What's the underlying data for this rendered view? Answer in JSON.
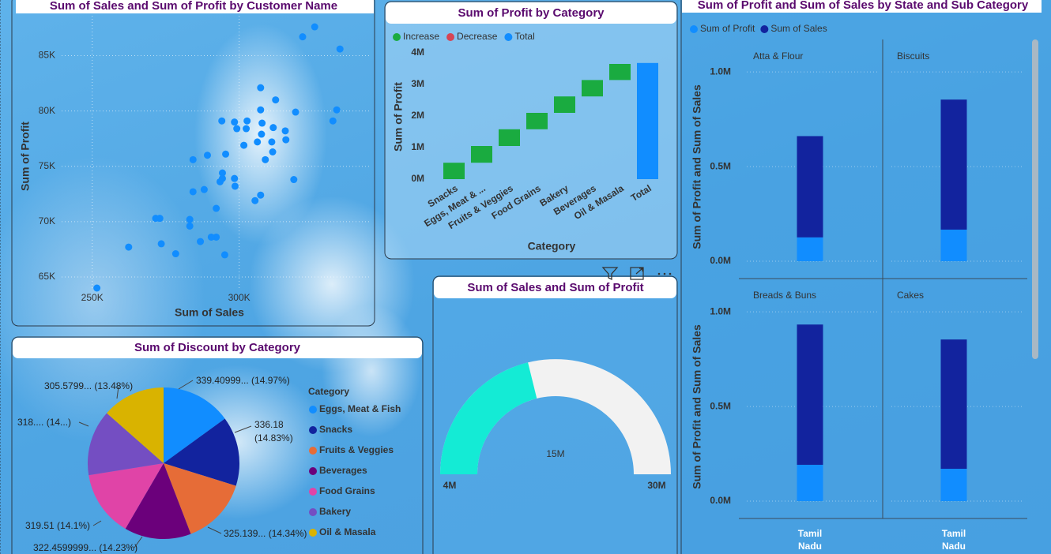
{
  "chart_data": [
    {
      "type": "scatter",
      "title": "Sum of Sales and Sum of Profit by Customer Name",
      "x_label": "Sum of Sales",
      "y_label": "Sum of Profit",
      "color": "#118DFF",
      "grid": true,
      "x": [
        325700,
        321600,
        334300,
        307300,
        312400,
        319200,
        333200,
        331900,
        307300,
        302700,
        294100,
        298400,
        299200,
        302400,
        307800,
        311600,
        315700,
        315900,
        307600,
        306200,
        311100,
        311400,
        308900,
        301600,
        295400,
        289200,
        284300,
        318600,
        294300,
        294300,
        293500,
        298400,
        298600,
        288100,
        284300,
        307300,
        305400,
        292200,
        283200,
        283200,
        271600,
        273000,
        292200,
        290500,
        286800,
        273500,
        278400,
        262400,
        295100,
        251600
      ],
      "values": [
        87600,
        86700,
        85600,
        82100,
        81000,
        79900,
        80100,
        79100,
        80100,
        79100,
        79100,
        79000,
        78400,
        78400,
        78900,
        78500,
        78200,
        77400,
        77900,
        77200,
        77200,
        76300,
        75600,
        76900,
        76100,
        76000,
        75600,
        73800,
        74400,
        73900,
        73600,
        73900,
        73200,
        72900,
        72700,
        72400,
        71900,
        71200,
        70200,
        69600,
        70300,
        70300,
        68600,
        68600,
        68200,
        68000,
        67100,
        67700,
        67000,
        64000
      ],
      "xlim": [
        224000,
        345000
      ],
      "ylim": [
        64000,
        88600
      ],
      "xticks": [
        {
          "value": 250000,
          "label": "250K"
        },
        {
          "value": 300000,
          "label": "300K"
        }
      ],
      "yticks": [
        {
          "value": 65000,
          "label": "65K"
        },
        {
          "value": 70000,
          "label": "70K"
        },
        {
          "value": 75000,
          "label": "75K"
        },
        {
          "value": 80000,
          "label": "80K"
        },
        {
          "value": 85000,
          "label": "85K"
        }
      ]
    },
    {
      "type": "waterfall",
      "title": "Sum of Profit by Category",
      "legend": [
        {
          "name": "Increase",
          "color": "#1AAB40"
        },
        {
          "name": "Decrease",
          "color": "#D64554"
        },
        {
          "name": "Total",
          "color": "#118DFF"
        }
      ],
      "x_label": "Category",
      "y_label": "Sum of Profit",
      "categories": [
        "Snacks",
        "Eggs, Meat & ...",
        "Fruits & Veggies",
        "Food Grains",
        "Bakery",
        "Beverages",
        "Oil & Masala",
        "Total"
      ],
      "values": [
        520000,
        530000,
        530000,
        520000,
        520000,
        520000,
        510000,
        3680000
      ],
      "ylim": [
        0,
        4000000
      ],
      "yticks": [
        {
          "value": 0,
          "label": "0M"
        },
        {
          "value": 1000000,
          "label": "1M"
        },
        {
          "value": 2000000,
          "label": "2M"
        },
        {
          "value": 3000000,
          "label": "3M"
        },
        {
          "value": 4000000,
          "label": "4M"
        }
      ]
    },
    {
      "type": "gauge",
      "title": "Sum of Sales and Sum of Profit",
      "value": 15000000,
      "value_label": "15M",
      "min": {
        "value": 4000000,
        "label": "4M"
      },
      "max": {
        "value": 30000000,
        "label": "30M"
      },
      "color": "#14EBD5",
      "track_color": "#F2F2F2"
    },
    {
      "type": "stacked_bar",
      "title": "Sum of Profit and Sum of Sales by State and Sub Category",
      "y_label": "Sum of Profit and Sum of Sales",
      "panels": [
        "Atta & Flour",
        "Biscuits",
        "Breads & Buns",
        "Cakes"
      ],
      "state": "Tamil Nadu",
      "series": [
        {
          "name": "Sum of Profit",
          "color": "#118DFF",
          "values": [
            126000,
            167000,
            192000,
            171000
          ]
        },
        {
          "name": "Sum of Sales",
          "color": "#12239E",
          "values": [
            535000,
            687000,
            741000,
            683000
          ]
        }
      ],
      "ylim": [
        0,
        1180000
      ],
      "yticks": [
        {
          "value": 0,
          "label": "0.0M"
        },
        {
          "value": 500000,
          "label": "0.5M"
        },
        {
          "value": 1000000,
          "label": "1.0M"
        }
      ],
      "grid": true
    },
    {
      "type": "pie",
      "title": "Sum of Discount by Category",
      "legend_title": "Category",
      "categories": [
        "Eggs, Meat & Fish",
        "Snacks",
        "Fruits & Veggies",
        "Beverages",
        "Food Grains",
        "Bakery",
        "Oil & Masala"
      ],
      "values": [
        339.40999,
        336.18,
        325.139,
        322.4599999,
        319.51,
        318,
        305.5799
      ],
      "value_labels": [
        "339.40999... (14.97%)",
        "336.18 (14.83%)",
        "325.139... (14.34%)",
        "322.4599999... (14.23%)",
        "319.51 (14.1%)",
        "318.... (14...)",
        "305.5799... (13.48%)"
      ],
      "colors": [
        "#118DFF",
        "#12239E",
        "#E66C37",
        "#6B007B",
        "#E044A7",
        "#744EC2",
        "#D9B300"
      ]
    }
  ]
}
